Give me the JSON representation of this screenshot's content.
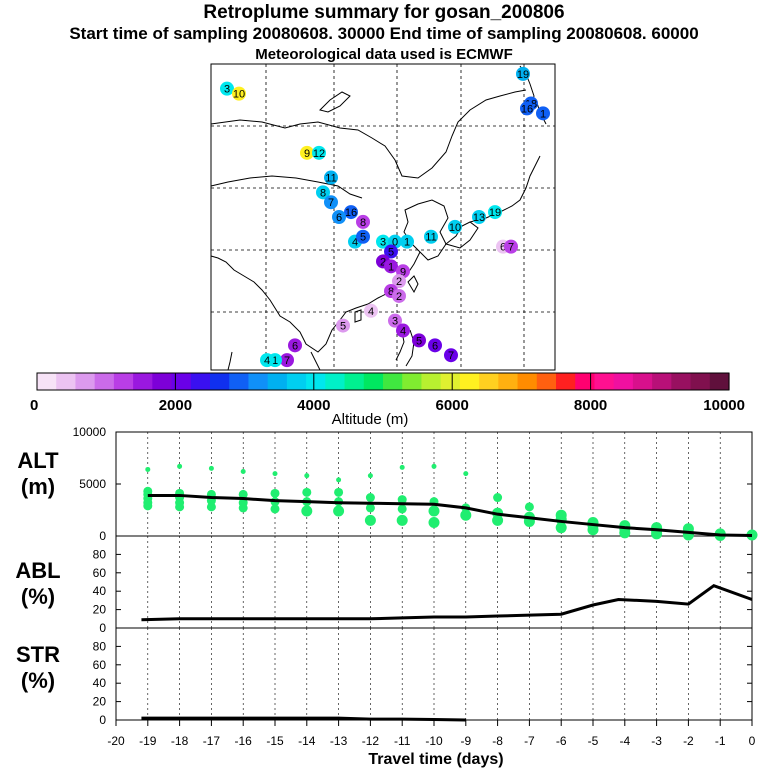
{
  "header": {
    "title": "Retroplume summary for gosan_200806",
    "sampling": "Start time of sampling 20080608. 30000     End time of sampling 20080608. 60000",
    "met": "Meteorological data used is ECMWF"
  },
  "colors": {
    "scale": [
      "#f7e3f7",
      "#ecc3f2",
      "#dc9aee",
      "#cb6bea",
      "#b93ee6",
      "#9a18df",
      "#7d00d8",
      "#6a00e8",
      "#3a10f0",
      "#1030ef",
      "#1060f5",
      "#1090f8",
      "#00b0f0",
      "#00cff0",
      "#00e7ee",
      "#00f0c8",
      "#00f090",
      "#00e860",
      "#40e840",
      "#80ec30",
      "#b8f030",
      "#e0f030",
      "#fff020",
      "#ffd020",
      "#ffb010",
      "#ff8c00",
      "#ff6010",
      "#ff2020",
      "#ff0070",
      "#ff1090",
      "#f010a0",
      "#d8108c",
      "#b81078",
      "#981060",
      "#80104e",
      "#60103c"
    ],
    "green": "#20ee70",
    "line": "#000000"
  },
  "colorbar": {
    "ticks": [
      "0",
      "2000",
      "4000",
      "6000",
      "8000",
      "10000"
    ],
    "label": "Altitude (m)"
  },
  "map": {
    "labels": [
      {
        "t": "3",
        "lon": 74,
        "lat": 67,
        "c": "#00e7ee"
      },
      {
        "t": "10",
        "lon": 77,
        "lat": 66,
        "c": "#fff020"
      },
      {
        "t": "19",
        "lon": 148,
        "lat": 70,
        "c": "#00b0f0"
      },
      {
        "t": "18",
        "lon": 150,
        "lat": 64,
        "c": "#1060f5"
      },
      {
        "t": "16",
        "lon": 149,
        "lat": 63,
        "c": "#1060f5"
      },
      {
        "t": "1",
        "lon": 153,
        "lat": 62,
        "c": "#1060f5"
      },
      {
        "t": "9",
        "lon": 94,
        "lat": 54,
        "c": "#fff020"
      },
      {
        "t": "12",
        "lon": 97,
        "lat": 54,
        "c": "#00e7ee"
      },
      {
        "t": "11",
        "lon": 100,
        "lat": 49,
        "c": "#00b0f0"
      },
      {
        "t": "8",
        "lon": 98,
        "lat": 46,
        "c": "#00cff0"
      },
      {
        "t": "7",
        "lon": 100,
        "lat": 44,
        "c": "#1090f8"
      },
      {
        "t": "16",
        "lon": 105,
        "lat": 42,
        "c": "#1060f5"
      },
      {
        "t": "6",
        "lon": 102,
        "lat": 41,
        "c": "#1090f8"
      },
      {
        "t": "8",
        "lon": 108,
        "lat": 40,
        "c": "#b93ee6"
      },
      {
        "t": "4",
        "lon": 106,
        "lat": 36,
        "c": "#00cff0"
      },
      {
        "t": "5",
        "lon": 108,
        "lat": 37,
        "c": "#1060f5"
      },
      {
        "t": "3",
        "lon": 113,
        "lat": 36,
        "c": "#00e7ee"
      },
      {
        "t": "0",
        "lon": 116,
        "lat": 36,
        "c": "#00cff0"
      },
      {
        "t": "1",
        "lon": 119,
        "lat": 36,
        "c": "#00cff0"
      },
      {
        "t": "11",
        "lon": 125,
        "lat": 37,
        "c": "#00cff0"
      },
      {
        "t": "10",
        "lon": 131,
        "lat": 39,
        "c": "#00cff0"
      },
      {
        "t": "13",
        "lon": 137,
        "lat": 41,
        "c": "#00cff0"
      },
      {
        "t": "19",
        "lon": 141,
        "lat": 42,
        "c": "#00e7ee"
      },
      {
        "t": "6",
        "lon": 143,
        "lat": 35,
        "c": "#ecc3f2"
      },
      {
        "t": "7",
        "lon": 145,
        "lat": 35,
        "c": "#b93ee6"
      },
      {
        "t": "5",
        "lon": 115,
        "lat": 34,
        "c": "#3a10f0"
      },
      {
        "t": "2",
        "lon": 113,
        "lat": 32,
        "c": "#7d00d8"
      },
      {
        "t": "1",
        "lon": 115,
        "lat": 31,
        "c": "#9a18df"
      },
      {
        "t": "9",
        "lon": 118,
        "lat": 30,
        "c": "#b93ee6"
      },
      {
        "t": "2",
        "lon": 117,
        "lat": 28,
        "c": "#dc9aee"
      },
      {
        "t": "8",
        "lon": 115,
        "lat": 26,
        "c": "#b93ee6"
      },
      {
        "t": "2",
        "lon": 117,
        "lat": 25,
        "c": "#cb6bea"
      },
      {
        "t": "4",
        "lon": 110,
        "lat": 22,
        "c": "#ecc3f2"
      },
      {
        "t": "5",
        "lon": 103,
        "lat": 19,
        "c": "#dc9aee"
      },
      {
        "t": "3",
        "lon": 116,
        "lat": 20,
        "c": "#cb6bea"
      },
      {
        "t": "4",
        "lon": 118,
        "lat": 18,
        "c": "#9a18df"
      },
      {
        "t": "5",
        "lon": 122,
        "lat": 16,
        "c": "#7d00d8"
      },
      {
        "t": "6",
        "lon": 126,
        "lat": 15,
        "c": "#6a00e8"
      },
      {
        "t": "7",
        "lon": 130,
        "lat": 13,
        "c": "#6a00e8"
      },
      {
        "t": "6",
        "lon": 91,
        "lat": 15,
        "c": "#9a18df"
      },
      {
        "t": "7",
        "lon": 89,
        "lat": 12,
        "c": "#9a18df"
      },
      {
        "t": "1",
        "lon": 86,
        "lat": 12,
        "c": "#00e7ee"
      },
      {
        "t": "4",
        "lon": 84,
        "lat": 12,
        "c": "#00e7ee"
      }
    ]
  },
  "chart_data": [
    {
      "type": "scatter",
      "panel": "ALT",
      "ylabel": "ALT (m)",
      "yticks": [
        "10000",
        "5000",
        "0"
      ],
      "ylim": [
        0,
        10000
      ],
      "xlim": [
        -20,
        0
      ],
      "x": [
        -19,
        -18,
        -17,
        -16,
        -15,
        -14,
        -13,
        -12,
        -11,
        -10,
        -9,
        -8,
        -7,
        -6,
        -5,
        -4,
        -3,
        -2,
        -1,
        0
      ],
      "median_line": [
        3900,
        3900,
        3700,
        3600,
        3400,
        3300,
        3200,
        3150,
        3100,
        3050,
        2700,
        2100,
        1750,
        1400,
        1100,
        800,
        600,
        350,
        100,
        50
      ],
      "points": [
        [
          -19,
          6400
        ],
        [
          -19,
          4300
        ],
        [
          -19,
          4000
        ],
        [
          -19,
          3200
        ],
        [
          -19,
          3600
        ],
        [
          -19,
          2900
        ],
        [
          -18,
          6700
        ],
        [
          -18,
          4100
        ],
        [
          -18,
          3700
        ],
        [
          -18,
          3200
        ],
        [
          -18,
          2800
        ],
        [
          -17,
          6500
        ],
        [
          -17,
          4000
        ],
        [
          -17,
          3400
        ],
        [
          -17,
          2800
        ],
        [
          -16,
          6200
        ],
        [
          -16,
          4000
        ],
        [
          -16,
          3200
        ],
        [
          -16,
          2700
        ],
        [
          -15,
          6000
        ],
        [
          -15,
          4100
        ],
        [
          -15,
          3300
        ],
        [
          -15,
          2600
        ],
        [
          -14,
          5800
        ],
        [
          -14,
          4200
        ],
        [
          -14,
          3300
        ],
        [
          -14,
          2400
        ],
        [
          -13,
          5400
        ],
        [
          -13,
          4200
        ],
        [
          -13,
          3300
        ],
        [
          -13,
          2400
        ],
        [
          -12,
          5800
        ],
        [
          -12,
          3700
        ],
        [
          -12,
          2700
        ],
        [
          -12,
          1500
        ],
        [
          -11,
          6600
        ],
        [
          -11,
          3500
        ],
        [
          -11,
          2600
        ],
        [
          -11,
          1500
        ],
        [
          -10,
          6700
        ],
        [
          -10,
          3300
        ],
        [
          -10,
          2400
        ],
        [
          -10,
          1300
        ],
        [
          -9,
          6000
        ],
        [
          -9,
          2700
        ],
        [
          -9,
          2000
        ],
        [
          -8,
          3700
        ],
        [
          -8,
          2200
        ],
        [
          -8,
          1500
        ],
        [
          -7,
          2800
        ],
        [
          -7,
          1800
        ],
        [
          -7,
          1400
        ],
        [
          -6,
          2000
        ],
        [
          -6,
          1600
        ],
        [
          -6,
          800
        ],
        [
          -5,
          1300
        ],
        [
          -5,
          1000
        ],
        [
          -5,
          600
        ],
        [
          -4,
          1000
        ],
        [
          -4,
          700
        ],
        [
          -4,
          300
        ],
        [
          -3,
          800
        ],
        [
          -3,
          500
        ],
        [
          -3,
          200
        ],
        [
          -2,
          700
        ],
        [
          -2,
          300
        ],
        [
          -2,
          100
        ],
        [
          -1,
          200
        ],
        [
          -1,
          50
        ],
        [
          0,
          100
        ]
      ]
    },
    {
      "type": "line",
      "panel": "ABL",
      "ylabel": "ABL (%)",
      "yticks": [
        "0",
        "20",
        "40",
        "60",
        "80"
      ],
      "ylim": [
        0,
        100
      ],
      "xlim": [
        -20,
        0
      ],
      "x": [
        -19.2,
        -18,
        -17,
        -16,
        -15,
        -14,
        -13,
        -12,
        -11,
        -10,
        -9,
        -8,
        -7,
        -6,
        -5,
        -4.2,
        -3,
        -2,
        -1.2,
        0
      ],
      "values": [
        9,
        10,
        10,
        10,
        10,
        10,
        10,
        10,
        11,
        12,
        12,
        13,
        14,
        15,
        25,
        31,
        29,
        26,
        46,
        31
      ]
    },
    {
      "type": "line",
      "panel": "STR",
      "ylabel": "STR (%)",
      "yticks": [
        "0",
        "20",
        "40",
        "60",
        "80"
      ],
      "ylim": [
        0,
        100
      ],
      "xlim": [
        -20,
        0
      ],
      "x": [
        -19.2,
        -18,
        -17,
        -16,
        -15,
        -14,
        -13,
        -12,
        -11,
        -10,
        -9
      ],
      "values": [
        2,
        2,
        2,
        2,
        2,
        2,
        2,
        1,
        1,
        0.5,
        0
      ],
      "xticks": [
        "-20",
        "-19",
        "-18",
        "-17",
        "-16",
        "-15",
        "-14",
        "-13",
        "-12",
        "-11",
        "-10",
        "-9",
        "-8",
        "-7",
        "-6",
        "-5",
        "-4",
        "-3",
        "-2",
        "-1",
        "0"
      ],
      "xlabel": "Travel time (days)"
    }
  ]
}
